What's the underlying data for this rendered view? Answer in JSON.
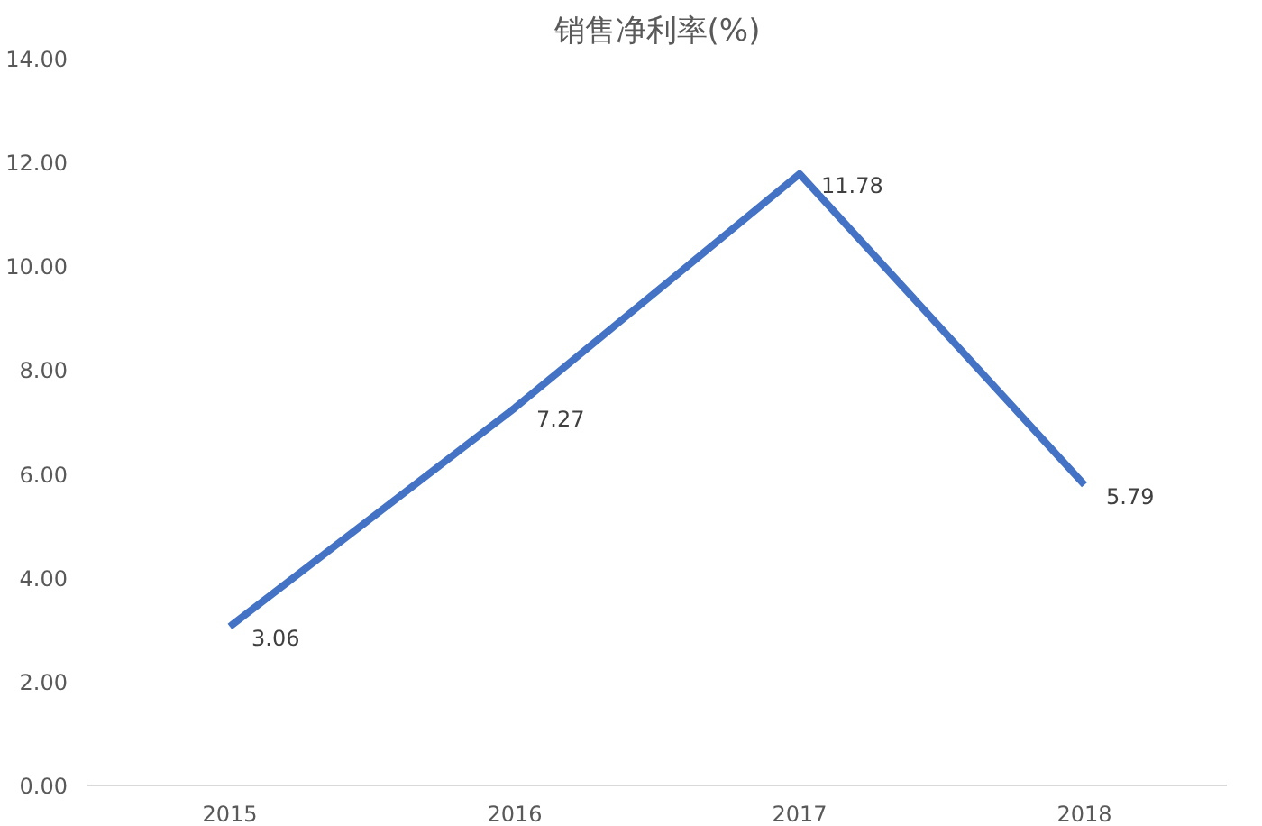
{
  "chart_data": {
    "type": "line",
    "title": "销售净利率(%)",
    "categories": [
      "2015",
      "2016",
      "2017",
      "2018"
    ],
    "series": [
      {
        "color": "#4472c4",
        "values": [
          3.06,
          7.27,
          11.78,
          5.79
        ]
      }
    ],
    "ylim": [
      0,
      14
    ],
    "yticks": [
      {
        "value": 0,
        "label": "0.00"
      },
      {
        "value": 2,
        "label": "2.00"
      },
      {
        "value": 4,
        "label": "4.00"
      },
      {
        "value": 6,
        "label": "6.00"
      },
      {
        "value": 8,
        "label": "8.00"
      },
      {
        "value": 10,
        "label": "10.00"
      },
      {
        "value": 12,
        "label": "12.00"
      },
      {
        "value": 14,
        "label": "14.00"
      }
    ],
    "data_labels": true,
    "grid": false,
    "marker": "none",
    "line_style": "solid"
  }
}
